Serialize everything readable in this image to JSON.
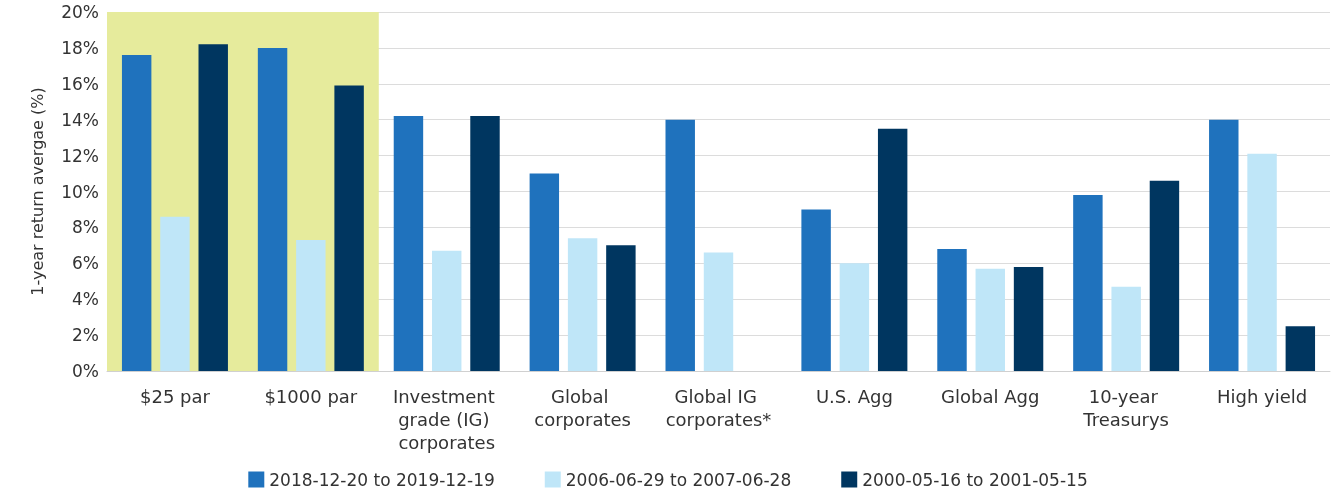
{
  "chart_data": {
    "type": "bar",
    "ylabel": "1-year return avergae (%)",
    "categories": [
      "$25 par",
      "$1000 par",
      "Investment grade (IG) corporates",
      "Global corporates",
      "Global IG corporates*",
      "U.S. Agg",
      "Global Agg",
      "10-year Treasurys",
      "High yield"
    ],
    "series": [
      {
        "name": "2018-12-20 to 2019-12-19",
        "color": "#1f72bd",
        "values": [
          17.6,
          18.0,
          14.2,
          11.0,
          14.0,
          9.0,
          6.8,
          9.8,
          14.0
        ]
      },
      {
        "name": "2006-06-29 to 2007-06-28",
        "color": "#bfe6f8",
        "values": [
          8.6,
          7.3,
          6.7,
          7.4,
          6.6,
          6.0,
          5.7,
          4.7,
          12.1
        ]
      },
      {
        "name": "2000-05-16 to 2001-05-15",
        "color": "#003660",
        "values": [
          18.2,
          15.9,
          14.2,
          7.0,
          null,
          13.5,
          5.8,
          10.6,
          2.5
        ]
      }
    ],
    "ylim": [
      0,
      20
    ],
    "yticks": [
      {
        "value": 0,
        "label": "0%"
      },
      {
        "value": 2,
        "label": "2%"
      },
      {
        "value": 4,
        "label": "4%"
      },
      {
        "value": 6,
        "label": "6%"
      },
      {
        "value": 8,
        "label": "8%"
      },
      {
        "value": 10,
        "label": "10%"
      },
      {
        "value": 12,
        "label": "12%"
      },
      {
        "value": 14,
        "label": "14%"
      },
      {
        "value": 16,
        "label": "16%"
      },
      {
        "value": 18,
        "label": "18%"
      },
      {
        "value": 20,
        "label": "20%"
      }
    ],
    "bands": [
      {
        "axis": "x",
        "from": "$25 par",
        "to": "$1000 par",
        "color": "#e6eb9c"
      }
    ],
    "grid": "y",
    "legend": "bottom"
  }
}
